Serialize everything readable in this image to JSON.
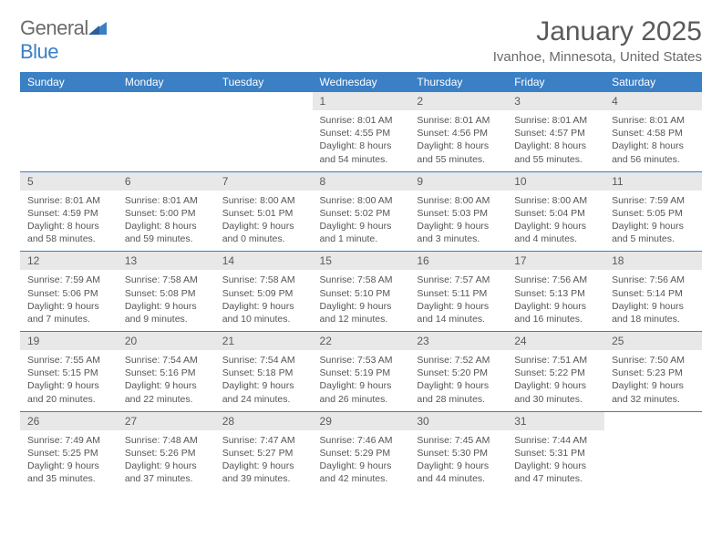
{
  "brand": {
    "part1": "General",
    "part2": "Blue"
  },
  "title": "January 2025",
  "location": "Ivanhoe, Minnesota, United States",
  "colors": {
    "header_bg": "#3b7fc4",
    "header_text": "#ffffff",
    "daynum_bg": "#e8e8e8",
    "text": "#555555",
    "rule": "#3b7fc4"
  },
  "dayNames": [
    "Sunday",
    "Monday",
    "Tuesday",
    "Wednesday",
    "Thursday",
    "Friday",
    "Saturday"
  ],
  "weeks": [
    [
      null,
      null,
      null,
      {
        "n": "1",
        "sr": "8:01 AM",
        "ss": "4:55 PM",
        "dl": "8 hours and 54 minutes."
      },
      {
        "n": "2",
        "sr": "8:01 AM",
        "ss": "4:56 PM",
        "dl": "8 hours and 55 minutes."
      },
      {
        "n": "3",
        "sr": "8:01 AM",
        "ss": "4:57 PM",
        "dl": "8 hours and 55 minutes."
      },
      {
        "n": "4",
        "sr": "8:01 AM",
        "ss": "4:58 PM",
        "dl": "8 hours and 56 minutes."
      }
    ],
    [
      {
        "n": "5",
        "sr": "8:01 AM",
        "ss": "4:59 PM",
        "dl": "8 hours and 58 minutes."
      },
      {
        "n": "6",
        "sr": "8:01 AM",
        "ss": "5:00 PM",
        "dl": "8 hours and 59 minutes."
      },
      {
        "n": "7",
        "sr": "8:00 AM",
        "ss": "5:01 PM",
        "dl": "9 hours and 0 minutes."
      },
      {
        "n": "8",
        "sr": "8:00 AM",
        "ss": "5:02 PM",
        "dl": "9 hours and 1 minute."
      },
      {
        "n": "9",
        "sr": "8:00 AM",
        "ss": "5:03 PM",
        "dl": "9 hours and 3 minutes."
      },
      {
        "n": "10",
        "sr": "8:00 AM",
        "ss": "5:04 PM",
        "dl": "9 hours and 4 minutes."
      },
      {
        "n": "11",
        "sr": "7:59 AM",
        "ss": "5:05 PM",
        "dl": "9 hours and 5 minutes."
      }
    ],
    [
      {
        "n": "12",
        "sr": "7:59 AM",
        "ss": "5:06 PM",
        "dl": "9 hours and 7 minutes."
      },
      {
        "n": "13",
        "sr": "7:58 AM",
        "ss": "5:08 PM",
        "dl": "9 hours and 9 minutes."
      },
      {
        "n": "14",
        "sr": "7:58 AM",
        "ss": "5:09 PM",
        "dl": "9 hours and 10 minutes."
      },
      {
        "n": "15",
        "sr": "7:58 AM",
        "ss": "5:10 PM",
        "dl": "9 hours and 12 minutes."
      },
      {
        "n": "16",
        "sr": "7:57 AM",
        "ss": "5:11 PM",
        "dl": "9 hours and 14 minutes."
      },
      {
        "n": "17",
        "sr": "7:56 AM",
        "ss": "5:13 PM",
        "dl": "9 hours and 16 minutes."
      },
      {
        "n": "18",
        "sr": "7:56 AM",
        "ss": "5:14 PM",
        "dl": "9 hours and 18 minutes."
      }
    ],
    [
      {
        "n": "19",
        "sr": "7:55 AM",
        "ss": "5:15 PM",
        "dl": "9 hours and 20 minutes."
      },
      {
        "n": "20",
        "sr": "7:54 AM",
        "ss": "5:16 PM",
        "dl": "9 hours and 22 minutes."
      },
      {
        "n": "21",
        "sr": "7:54 AM",
        "ss": "5:18 PM",
        "dl": "9 hours and 24 minutes."
      },
      {
        "n": "22",
        "sr": "7:53 AM",
        "ss": "5:19 PM",
        "dl": "9 hours and 26 minutes."
      },
      {
        "n": "23",
        "sr": "7:52 AM",
        "ss": "5:20 PM",
        "dl": "9 hours and 28 minutes."
      },
      {
        "n": "24",
        "sr": "7:51 AM",
        "ss": "5:22 PM",
        "dl": "9 hours and 30 minutes."
      },
      {
        "n": "25",
        "sr": "7:50 AM",
        "ss": "5:23 PM",
        "dl": "9 hours and 32 minutes."
      }
    ],
    [
      {
        "n": "26",
        "sr": "7:49 AM",
        "ss": "5:25 PM",
        "dl": "9 hours and 35 minutes."
      },
      {
        "n": "27",
        "sr": "7:48 AM",
        "ss": "5:26 PM",
        "dl": "9 hours and 37 minutes."
      },
      {
        "n": "28",
        "sr": "7:47 AM",
        "ss": "5:27 PM",
        "dl": "9 hours and 39 minutes."
      },
      {
        "n": "29",
        "sr": "7:46 AM",
        "ss": "5:29 PM",
        "dl": "9 hours and 42 minutes."
      },
      {
        "n": "30",
        "sr": "7:45 AM",
        "ss": "5:30 PM",
        "dl": "9 hours and 44 minutes."
      },
      {
        "n": "31",
        "sr": "7:44 AM",
        "ss": "5:31 PM",
        "dl": "9 hours and 47 minutes."
      },
      null
    ]
  ],
  "labels": {
    "sunrise": "Sunrise:",
    "sunset": "Sunset:",
    "daylight": "Daylight:"
  }
}
